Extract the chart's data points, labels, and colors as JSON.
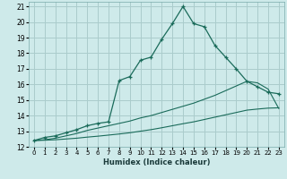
{
  "bg_color": "#ceeaea",
  "grid_color": "#aacccc",
  "line_color": "#1a6b5a",
  "xlabel": "Humidex (Indice chaleur)",
  "xlim": [
    -0.5,
    23.5
  ],
  "ylim": [
    12,
    21.3
  ],
  "yticks": [
    12,
    13,
    14,
    15,
    16,
    17,
    18,
    19,
    20,
    21
  ],
  "xticks": [
    0,
    1,
    2,
    3,
    4,
    5,
    6,
    7,
    8,
    9,
    10,
    11,
    12,
    13,
    14,
    15,
    16,
    17,
    18,
    19,
    20,
    21,
    22,
    23
  ],
  "line1_x": [
    0,
    1,
    2,
    3,
    4,
    5,
    6,
    7,
    8,
    9,
    10,
    11,
    12,
    13,
    14,
    15,
    16,
    17,
    18,
    19,
    20,
    21,
    22,
    23
  ],
  "line1_y": [
    12.4,
    12.6,
    12.7,
    12.9,
    13.1,
    13.35,
    13.5,
    13.6,
    16.25,
    16.5,
    17.55,
    17.75,
    18.9,
    19.9,
    21.0,
    19.9,
    19.7,
    18.5,
    17.75,
    17.0,
    16.2,
    15.85,
    15.5,
    15.4
  ],
  "line2_x": [
    0,
    1,
    2,
    3,
    4,
    5,
    6,
    7,
    8,
    9,
    10,
    11,
    12,
    13,
    14,
    15,
    16,
    17,
    18,
    19,
    20,
    21,
    22,
    23
  ],
  "line2_y": [
    12.4,
    12.45,
    12.55,
    12.7,
    12.85,
    13.05,
    13.2,
    13.35,
    13.5,
    13.65,
    13.85,
    14.0,
    14.2,
    14.4,
    14.6,
    14.8,
    15.05,
    15.3,
    15.6,
    15.9,
    16.2,
    16.1,
    15.7,
    14.45
  ],
  "line3_x": [
    0,
    1,
    2,
    3,
    4,
    5,
    6,
    7,
    8,
    9,
    10,
    11,
    12,
    13,
    14,
    15,
    16,
    17,
    18,
    19,
    20,
    21,
    22,
    23
  ],
  "line3_y": [
    12.4,
    12.42,
    12.45,
    12.5,
    12.55,
    12.62,
    12.68,
    12.75,
    12.82,
    12.9,
    13.0,
    13.1,
    13.22,
    13.35,
    13.48,
    13.6,
    13.75,
    13.9,
    14.05,
    14.2,
    14.35,
    14.42,
    14.48,
    14.5
  ]
}
